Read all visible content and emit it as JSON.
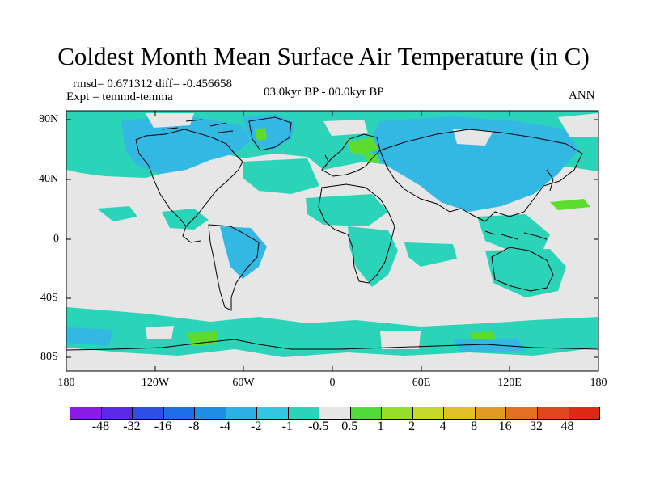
{
  "title": "Coldest Month Mean Surface Air Temperature (in C)",
  "stats_line": "rmsd= 0.671312 diff= -0.456658",
  "experiment_line": "Expt = temmd-temma",
  "period": "03.0kyr BP - 00.0kyr BP",
  "season": "ANN",
  "lat_labels": [
    "80N",
    "40N",
    "0",
    "40S",
    "80S"
  ],
  "lon_labels": [
    "180",
    "120W",
    "60W",
    "0",
    "60E",
    "120E",
    "180"
  ],
  "colors": {
    "background_field": "#e6e6e6",
    "ocean_anomaly": "#2bd3b9",
    "land_anomaly": "#33b8e4",
    "positive_anomaly": "#5ddc2e",
    "coastline": "#000000"
  },
  "colorbar": {
    "colors": [
      "#8a1be6",
      "#5a2ae6",
      "#2e4ee6",
      "#1e6fe6",
      "#1f8ee6",
      "#2db0e6",
      "#33c7e0",
      "#2bd3b9",
      "#e6e6e6",
      "#4fdb3a",
      "#97de2a",
      "#c6d92a",
      "#e0c226",
      "#e29a22",
      "#e3701e",
      "#e0461c",
      "#dc2a16"
    ],
    "labels": [
      "-48",
      "-32",
      "-16",
      "-8",
      "-4",
      "-2",
      "-1",
      "-0.5",
      "0.5",
      "1",
      "2",
      "4",
      "8",
      "16",
      "32",
      "48"
    ]
  }
}
